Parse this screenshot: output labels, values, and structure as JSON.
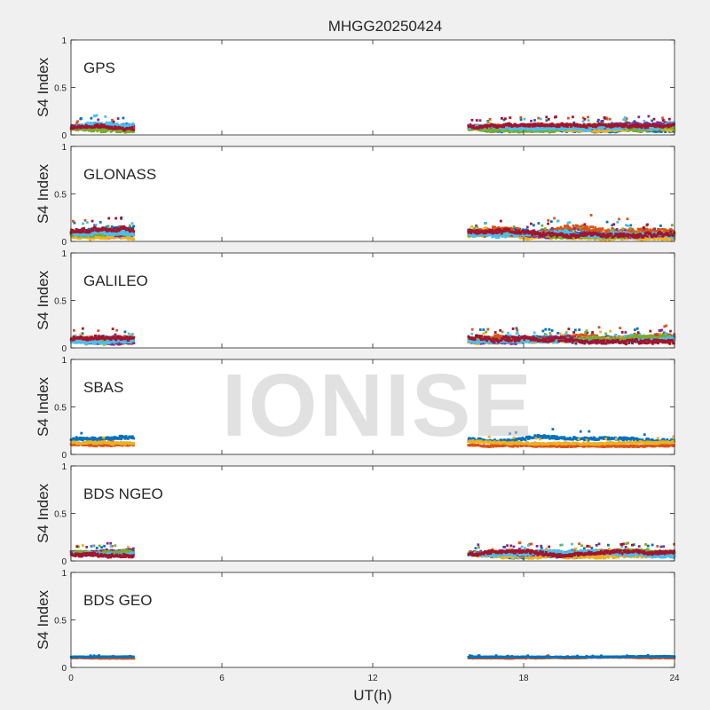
{
  "figure": {
    "title": "MHGG20250424",
    "watermark": "IONISE",
    "xlabel": "UT(h)",
    "ylabel": "S4 Index",
    "xticks": [
      "0",
      "6",
      "12",
      "18",
      "24"
    ],
    "yticks": [
      "0",
      "0.5",
      "1"
    ]
  },
  "chart_data": [
    {
      "type": "scatter",
      "panel": "GPS",
      "xlabel": "",
      "ylabel": "S4 Index",
      "xlim": [
        0,
        24
      ],
      "ylim": [
        0,
        1
      ],
      "grid": false,
      "segments": [
        [
          0,
          2.5
        ],
        [
          15.8,
          24
        ]
      ],
      "series": [
        {
          "color": "#0072BD",
          "level": 0.08,
          "spread": 0.035
        },
        {
          "color": "#D95319",
          "level": 0.07,
          "spread": 0.03
        },
        {
          "color": "#EDB120",
          "level": 0.06,
          "spread": 0.025
        },
        {
          "color": "#7E2F8E",
          "level": 0.09,
          "spread": 0.03
        },
        {
          "color": "#77AC30",
          "level": 0.07,
          "spread": 0.03
        },
        {
          "color": "#4DBEEE",
          "level": 0.08,
          "spread": 0.035
        },
        {
          "color": "#A2142F",
          "level": 0.08,
          "spread": 0.03
        }
      ]
    },
    {
      "type": "scatter",
      "panel": "GLONASS",
      "xlabel": "",
      "ylabel": "S4 Index",
      "xlim": [
        0,
        24
      ],
      "ylim": [
        0,
        1
      ],
      "grid": false,
      "segments": [
        [
          0,
          2.5
        ],
        [
          15.8,
          24
        ]
      ],
      "series": [
        {
          "color": "#0072BD",
          "level": 0.1,
          "spread": 0.04
        },
        {
          "color": "#D95319",
          "level": 0.1,
          "spread": 0.05
        },
        {
          "color": "#EDB120",
          "level": 0.06,
          "spread": 0.03
        },
        {
          "color": "#7E2F8E",
          "level": 0.08,
          "spread": 0.03
        },
        {
          "color": "#77AC30",
          "level": 0.07,
          "spread": 0.03
        },
        {
          "color": "#4DBEEE",
          "level": 0.09,
          "spread": 0.04
        },
        {
          "color": "#A2142F",
          "level": 0.1,
          "spread": 0.04
        }
      ]
    },
    {
      "type": "scatter",
      "panel": "GALILEO",
      "xlabel": "",
      "ylabel": "S4 Index",
      "xlim": [
        0,
        24
      ],
      "ylim": [
        0,
        1
      ],
      "grid": false,
      "segments": [
        [
          0,
          2.5
        ],
        [
          15.8,
          24
        ]
      ],
      "series": [
        {
          "color": "#0072BD",
          "level": 0.08,
          "spread": 0.035
        },
        {
          "color": "#D95319",
          "level": 0.09,
          "spread": 0.04
        },
        {
          "color": "#EDB120",
          "level": 0.07,
          "spread": 0.03
        },
        {
          "color": "#7E2F8E",
          "level": 0.08,
          "spread": 0.03
        },
        {
          "color": "#77AC30",
          "level": 0.09,
          "spread": 0.03
        },
        {
          "color": "#4DBEEE",
          "level": 0.07,
          "spread": 0.03
        },
        {
          "color": "#A2142F",
          "level": 0.1,
          "spread": 0.04
        }
      ]
    },
    {
      "type": "scatter",
      "panel": "SBAS",
      "xlabel": "",
      "ylabel": "S4 Index",
      "xlim": [
        0,
        24
      ],
      "ylim": [
        0,
        1
      ],
      "grid": false,
      "segments": [
        [
          0,
          2.5
        ],
        [
          15.8,
          24
        ]
      ],
      "series": [
        {
          "color": "#0072BD",
          "level": 0.16,
          "spread": 0.03
        },
        {
          "color": "#D95319",
          "level": 0.1,
          "spread": 0.015
        },
        {
          "color": "#EDB120",
          "level": 0.13,
          "spread": 0.02
        }
      ]
    },
    {
      "type": "scatter",
      "panel": "BDS NGEO",
      "xlabel": "",
      "ylabel": "S4 Index",
      "xlim": [
        0,
        24
      ],
      "ylim": [
        0,
        1
      ],
      "grid": false,
      "segments": [
        [
          0,
          2.5
        ],
        [
          15.8,
          24
        ]
      ],
      "series": [
        {
          "color": "#0072BD",
          "level": 0.07,
          "spread": 0.03
        },
        {
          "color": "#D95319",
          "level": 0.08,
          "spread": 0.03
        },
        {
          "color": "#EDB120",
          "level": 0.07,
          "spread": 0.03
        },
        {
          "color": "#7E2F8E",
          "level": 0.09,
          "spread": 0.03
        },
        {
          "color": "#77AC30",
          "level": 0.08,
          "spread": 0.03
        },
        {
          "color": "#4DBEEE",
          "level": 0.07,
          "spread": 0.03
        },
        {
          "color": "#A2142F",
          "level": 0.07,
          "spread": 0.03
        }
      ]
    },
    {
      "type": "scatter",
      "panel": "BDS GEO",
      "xlabel": "UT(h)",
      "ylabel": "S4 Index",
      "xlim": [
        0,
        24
      ],
      "ylim": [
        0,
        1
      ],
      "grid": false,
      "segments": [
        [
          0,
          2.5
        ],
        [
          15.8,
          24
        ]
      ],
      "series": [
        {
          "color": "#D95319",
          "level": 0.1,
          "spread": 0.008
        },
        {
          "color": "#0072BD",
          "level": 0.11,
          "spread": 0.005
        }
      ]
    }
  ]
}
